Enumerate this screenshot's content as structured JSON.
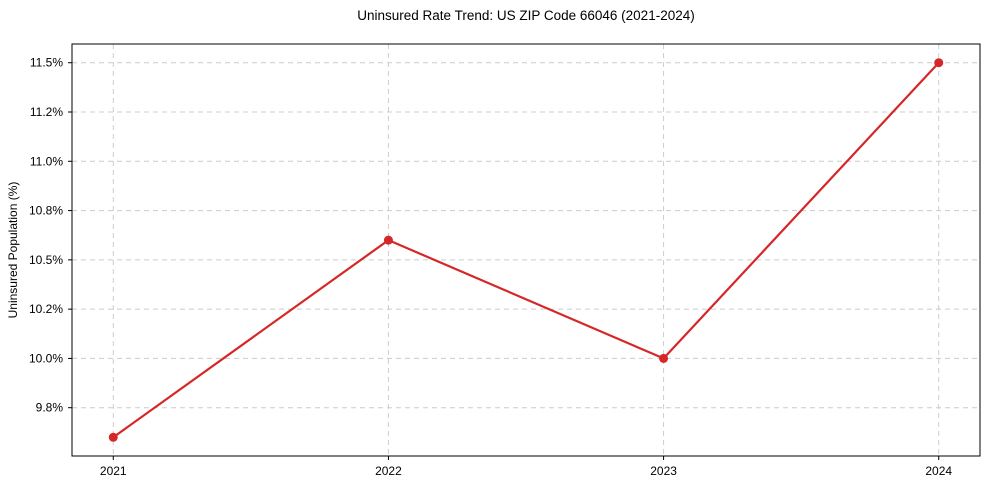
{
  "chart_data": {
    "type": "line",
    "title": "Uninsured Rate Trend: US ZIP Code 66046 (2021-2024)",
    "xlabel": "",
    "ylabel": "Uninsured Population (%)",
    "x": [
      2021,
      2022,
      2023,
      2024
    ],
    "x_tick_labels": [
      "2021",
      "2022",
      "2023",
      "2024"
    ],
    "values": [
      9.6,
      10.6,
      10.0,
      11.5
    ],
    "y_ticks": [
      9.75,
      10.0,
      10.25,
      10.5,
      10.75,
      11.0,
      11.25,
      11.5
    ],
    "y_tick_labels": [
      "9.8%",
      "10.0%",
      "10.2%",
      "10.5%",
      "10.8%",
      "11.0%",
      "11.2%",
      "11.5%"
    ],
    "xlim": [
      2020.85,
      2024.15
    ],
    "ylim": [
      9.505,
      11.595
    ],
    "grid": true,
    "grid_style": "dashed",
    "legend": "none",
    "line_color": "#d62728",
    "marker": "circle",
    "grid_color": "#cccccc",
    "spine_color": "#000000",
    "text_color": "#000000"
  }
}
